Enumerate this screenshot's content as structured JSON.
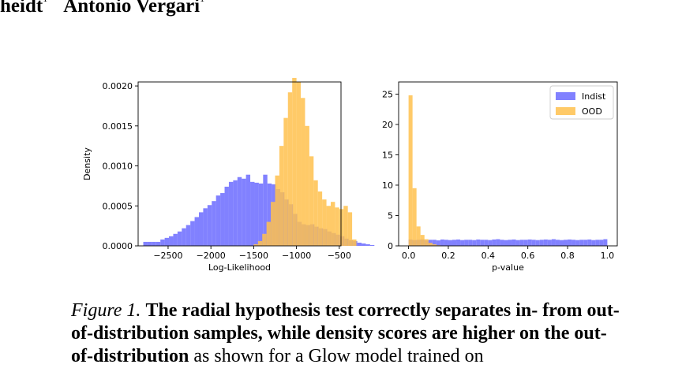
{
  "header": {
    "author_1": "heidt",
    "author_1_mark": "1",
    "author_2": "Antonio Vergari",
    "author_2_mark": "1"
  },
  "caption": {
    "label": "Figure 1.",
    "bold_text": "The radial hypothesis test correctly separates in- from out-of-distribution samples, while density scores are higher on the out-of-distribution",
    "rest_text": " as shown for a Glow model trained on"
  },
  "chart_data": [
    {
      "type": "histogram",
      "xlabel": "Log-Likelihood",
      "ylabel": "Density",
      "xlim": [
        -2850,
        -480
      ],
      "ylim": [
        0,
        0.00205
      ],
      "xticks": [
        -2500,
        -2000,
        -1500,
        -1000,
        -500
      ],
      "xtick_labels": [
        "−2500",
        "−2000",
        "−1500",
        "−1000",
        "−500"
      ],
      "yticks": [
        0,
        0.0005,
        0.001,
        0.0015,
        0.002
      ],
      "ytick_labels": [
        "0.0000",
        "0.0005",
        "0.0010",
        "0.0015",
        "0.0020"
      ],
      "grid": false,
      "series": [
        {
          "color": "#6b6bff",
          "bin_start": -2790,
          "bin_width": 50,
          "values": [
            5e-05,
            5e-05,
            5e-05,
            5e-05,
            8e-05,
            0.0001,
            0.00012,
            0.00015,
            0.00018,
            0.00022,
            0.00026,
            0.00031,
            0.00036,
            0.00042,
            0.00047,
            0.00051,
            0.00056,
            0.00063,
            0.00066,
            0.00074,
            0.0008,
            0.00082,
            0.00086,
            0.00084,
            0.00089,
            0.0008,
            0.00079,
            0.00078,
            0.00089,
            0.00078,
            0.00077,
            0.00071,
            0.00067,
            0.00058,
            0.00052,
            0.0004,
            0.0003,
            0.00027,
            0.00026,
            0.00027,
            0.00024,
            0.00022,
            0.00021,
            0.00018,
            0.00016,
            0.00014,
            0.00012,
            9e-05,
            7e-05,
            6e-05,
            4e-05,
            3e-05,
            2e-05,
            1e-05
          ]
        },
        {
          "color": "#ffc14d",
          "bin_start": -1500,
          "bin_width": 50,
          "values": [
            2e-05,
            6e-05,
            0.00015,
            0.0003,
            0.00055,
            0.00088,
            0.00125,
            0.0016,
            0.00192,
            0.0021,
            0.00205,
            0.00185,
            0.0015,
            0.00112,
            0.00082,
            0.00068,
            0.00058,
            0.0005,
            0.00055,
            0.00048,
            0.00046,
            0.0005,
            0.00042,
            8e-05
          ]
        }
      ]
    },
    {
      "type": "histogram",
      "xlabel": "p-value",
      "ylabel": "",
      "xlim": [
        -0.05,
        1.05
      ],
      "ylim": [
        0,
        27
      ],
      "xticks": [
        0,
        0.2,
        0.4,
        0.6,
        0.8,
        1.0
      ],
      "xtick_labels": [
        "0.0",
        "0.2",
        "0.4",
        "0.6",
        "0.8",
        "1.0"
      ],
      "yticks": [
        0,
        5,
        10,
        15,
        20,
        25
      ],
      "ytick_labels": [
        "0",
        "5",
        "10",
        "15",
        "20",
        "25"
      ],
      "grid": false,
      "legend": {
        "position": "upper right",
        "entries": [
          "Indist",
          "OOD"
        ]
      },
      "series": [
        {
          "name": "Indist",
          "color": "#6b6bff",
          "bin_start": 0,
          "bin_width": 0.02,
          "values": [
            1.05,
            0.95,
            1.0,
            1.05,
            0.9,
            1.0,
            1.0,
            0.9,
            1.05,
            1.0,
            0.95,
            1.0,
            1.05,
            0.95,
            1.0,
            1.0,
            0.95,
            1.05,
            1.0,
            1.0,
            0.95,
            1.05,
            1.1,
            1.0,
            0.95,
            1.0,
            1.05,
            0.95,
            1.0,
            1.0,
            1.05,
            1.0,
            0.95,
            1.0,
            1.05,
            1.0,
            1.1,
            1.0,
            0.95,
            1.0,
            1.05,
            1.0,
            0.95,
            1.0,
            1.0,
            1.05,
            0.95,
            1.0,
            1.0,
            1.1
          ]
        },
        {
          "name": "OOD",
          "color": "#ffc14d",
          "bin_start": 0,
          "bin_width": 0.02,
          "values": [
            24.8,
            9.5,
            3.2,
            1.8,
            1.1,
            0.5,
            0.25,
            0.1,
            0.04,
            0.02
          ]
        }
      ]
    }
  ]
}
